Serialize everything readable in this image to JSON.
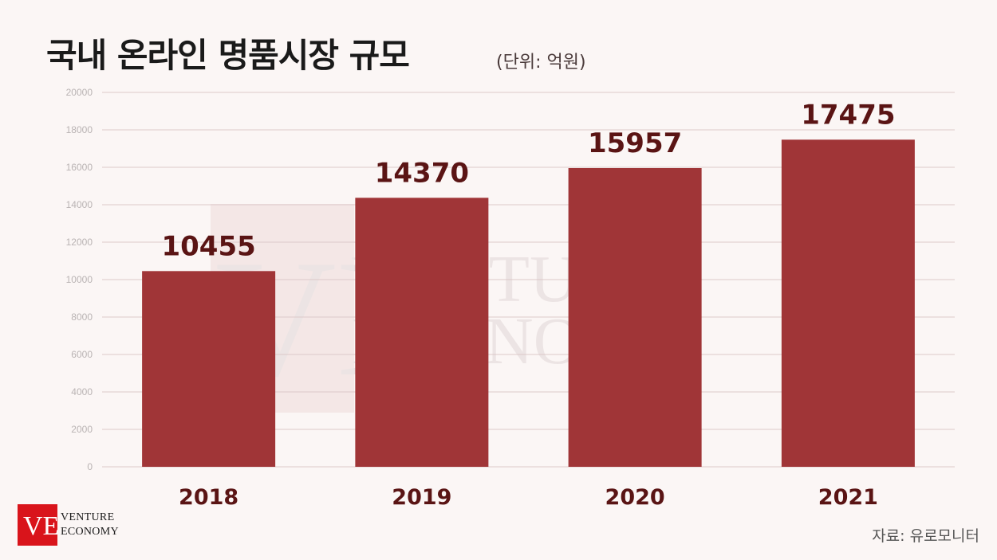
{
  "header": {
    "title": "국내 온라인 명품시장 규모",
    "unit": "(단위: 억원)"
  },
  "watermark": {
    "letters": "VE",
    "line1": "VENTURE",
    "line2": "ECONOMY"
  },
  "logo": {
    "letters": "VE",
    "line1": "VENTURE",
    "line2": "ECONOMY",
    "color": "#d9141b"
  },
  "source": "자료: 유로모니터",
  "colors": {
    "bar": "#a03537",
    "value_label": "#5a1414",
    "grid": "#dcc9c9",
    "tick": "#b9b3b3"
  },
  "chart_data": {
    "type": "bar",
    "title": "국내 온라인 명품시장 규모",
    "categories": [
      "2018",
      "2019",
      "2020",
      "2021"
    ],
    "values": [
      10455,
      14370,
      15957,
      17475
    ],
    "ylim": [
      0,
      20000
    ],
    "yticks": [
      "0",
      "2000",
      "4000",
      "6000",
      "8000",
      "10000",
      "12000",
      "14000",
      "16000",
      "18000",
      "20000"
    ],
    "grid": true,
    "data_labels": true
  }
}
